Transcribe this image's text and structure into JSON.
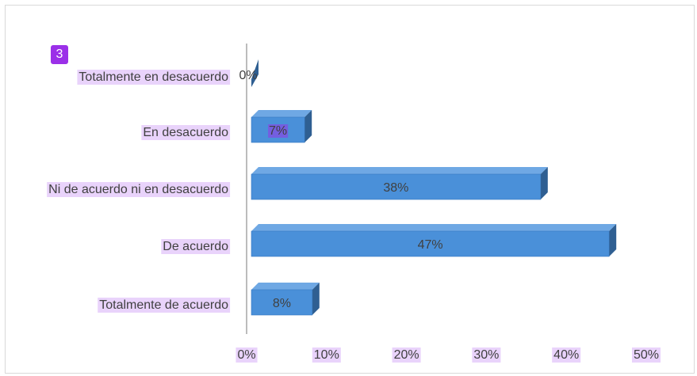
{
  "badge": "3",
  "chart_data": {
    "type": "bar",
    "orientation": "horizontal",
    "categories": [
      "Totalmente en desacuerdo",
      "En desacuerdo",
      "Ni de acuerdo ni en desacuerdo",
      "De acuerdo",
      "Totalmente de acuerdo"
    ],
    "values": [
      0,
      7,
      38,
      47,
      8
    ],
    "data_labels": [
      "0%",
      "7%",
      "38%",
      "47%",
      "8%"
    ],
    "x_ticks": [
      "0%",
      "10%",
      "20%",
      "30%",
      "40%",
      "50%"
    ],
    "xlim": [
      0,
      50
    ],
    "unit": "%",
    "grid": false,
    "legend": "none",
    "colors": {
      "bar_front": "#4a90d9",
      "bar_top": "#6fa8e4",
      "bar_side": "#2f5f92",
      "label_highlight": "#e9d3fb",
      "data_highlight": "#7b56e0"
    }
  }
}
